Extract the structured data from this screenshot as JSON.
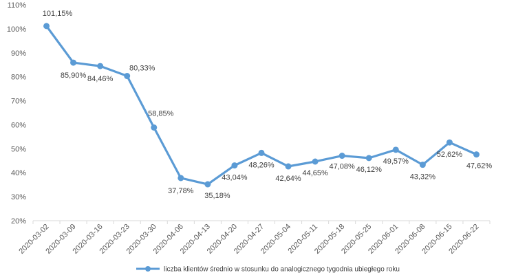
{
  "chart_data": {
    "type": "line",
    "categories": [
      "2020-03-02",
      "2020-03-09",
      "2020-03-16",
      "2020-03-23",
      "2020-03-30",
      "2020-04-06",
      "2020-04-13",
      "2020-04-20",
      "2020-04-27",
      "2020-05-04",
      "2020-05-11",
      "2020-05-18",
      "2020-05-25",
      "2020-06-01",
      "2020-06-08",
      "2020-06-15",
      "2020-06-22"
    ],
    "series": [
      {
        "name": "liczba klientów średnio w stosunku do analogicznego tygodnia ubiegłego roku",
        "values": [
          101.15,
          85.9,
          84.46,
          80.33,
          58.85,
          37.78,
          35.18,
          43.04,
          48.26,
          42.64,
          44.65,
          47.08,
          46.12,
          49.57,
          43.32,
          52.62,
          47.62
        ],
        "labels": [
          "101,15%",
          "85,90%",
          "84,46%",
          "80,33%",
          "58,85%",
          "37,78%",
          "35,18%",
          "43,04%",
          "48,26%",
          "42,64%",
          "44,65%",
          "47,08%",
          "46,12%",
          "49,57%",
          "43,32%",
          "52,62%",
          "47,62%"
        ],
        "color": "#5b9bd5"
      }
    ],
    "yticks": [
      20,
      30,
      40,
      50,
      60,
      70,
      80,
      90,
      100,
      110
    ],
    "ytick_labels": [
      "20%",
      "30%",
      "40%",
      "50%",
      "60%",
      "70%",
      "80%",
      "90%",
      "100%",
      "110%"
    ],
    "ylim": [
      20,
      110
    ],
    "title": "",
    "xlabel": "",
    "ylabel": "",
    "grid": false,
    "legend": "bottom",
    "axis_color": "#d9d9d9",
    "text_color": "#595959"
  }
}
